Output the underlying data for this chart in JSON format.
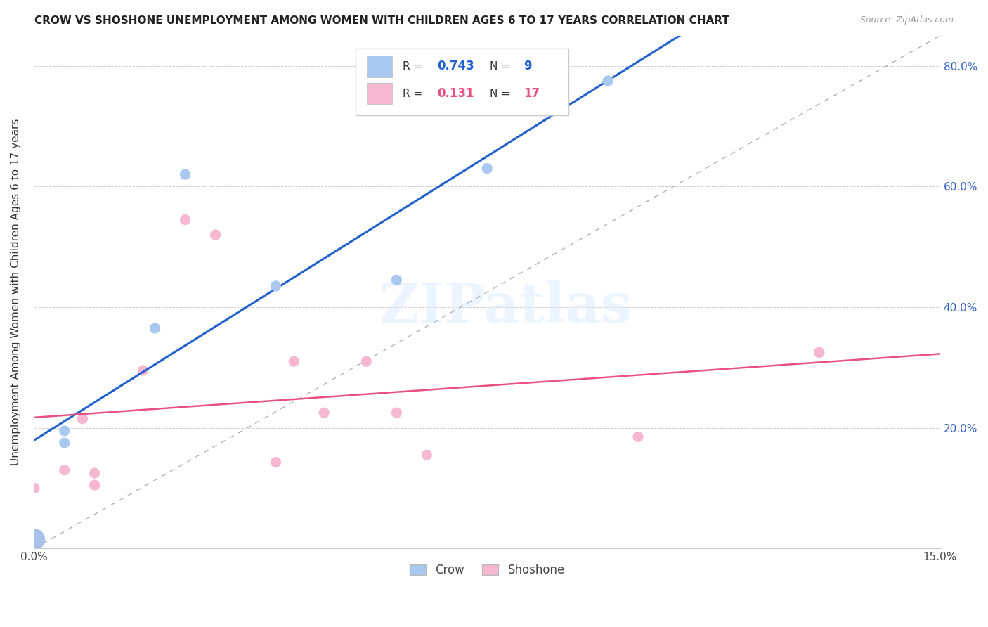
{
  "title": "CROW VS SHOSHONE UNEMPLOYMENT AMONG WOMEN WITH CHILDREN AGES 6 TO 17 YEARS CORRELATION CHART",
  "source": "Source: ZipAtlas.com",
  "ylabel": "Unemployment Among Women with Children Ages 6 to 17 years",
  "xlim": [
    0.0,
    0.15
  ],
  "ylim": [
    0.0,
    0.85
  ],
  "crow_color": "#a8c8f0",
  "crow_color_large": "#9ab8e8",
  "shoshone_color": "#f5b8d0",
  "crow_line_color": "#2060d0",
  "shoshone_line_color": "#e85080",
  "identity_line_color": "#b0b0b0",
  "crow_R": "0.743",
  "crow_N": "9",
  "shoshone_R": "0.131",
  "shoshone_N": "17",
  "crow_x": [
    0.0,
    0.005,
    0.005,
    0.02,
    0.025,
    0.04,
    0.06,
    0.075,
    0.095
  ],
  "crow_y": [
    0.015,
    0.175,
    0.195,
    0.365,
    0.62,
    0.435,
    0.445,
    0.63,
    0.775
  ],
  "crow_sizes": [
    500,
    120,
    120,
    120,
    120,
    120,
    120,
    120,
    120
  ],
  "shoshone_x": [
    0.0,
    0.005,
    0.008,
    0.01,
    0.01,
    0.018,
    0.025,
    0.03,
    0.04,
    0.043,
    0.048,
    0.055,
    0.06,
    0.065,
    0.1,
    0.13,
    0.13
  ],
  "shoshone_y": [
    0.1,
    0.13,
    0.215,
    0.125,
    0.105,
    0.295,
    0.545,
    0.52,
    0.143,
    0.31,
    0.225,
    0.31,
    0.225,
    0.155,
    0.185,
    0.325,
    0.325
  ],
  "watermark_text": "ZIPatlas",
  "legend_label_crow": "Crow",
  "legend_label_shoshone": "Shoshone"
}
